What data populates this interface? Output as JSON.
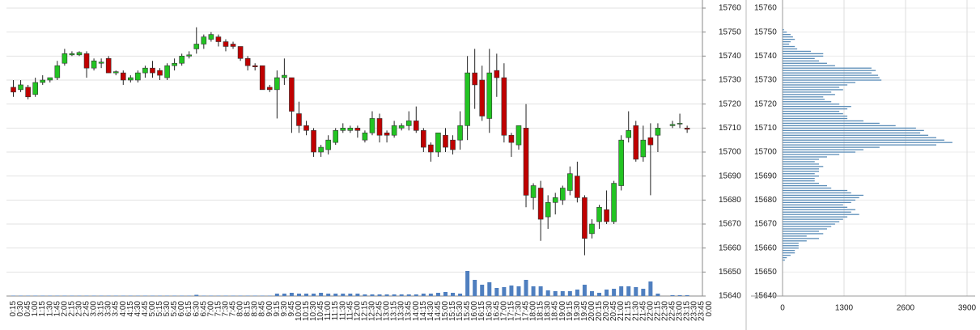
{
  "chart_data": [
    {
      "type": "candlestick",
      "categories": [
        "0:15",
        "0:30",
        "0:45",
        "1:00",
        "1:15",
        "1:30",
        "1:45",
        "2:00",
        "2:15",
        "2:30",
        "2:45",
        "3:00",
        "3:15",
        "3:30",
        "3:45",
        "4:00",
        "4:15",
        "4:30",
        "4:45",
        "5:00",
        "5:15",
        "5:30",
        "5:45",
        "6:00",
        "6:15",
        "6:30",
        "6:45",
        "7:00",
        "7:15",
        "7:30",
        "7:45",
        "8:00",
        "8:15",
        "8:30",
        "8:45",
        "9:00",
        "9:15",
        "9:30",
        "9:45",
        "10:00",
        "10:15",
        "10:30",
        "10:45",
        "11:00",
        "11:15",
        "11:30",
        "11:45",
        "12:00",
        "12:15",
        "12:30",
        "12:45",
        "13:00",
        "13:15",
        "13:30",
        "13:45",
        "14:00",
        "14:15",
        "14:30",
        "14:45",
        "15:00",
        "15:15",
        "15:30",
        "15:45",
        "16:00",
        "16:15",
        "16:30",
        "16:45",
        "17:00",
        "17:15",
        "17:30",
        "17:45",
        "18:00",
        "18:15",
        "18:30",
        "18:45",
        "19:00",
        "19:15",
        "19:30",
        "19:45",
        "20:00",
        "20:15",
        "20:30",
        "20:45",
        "21:00",
        "21:15",
        "21:30",
        "21:45",
        "22:00",
        "22:15",
        "22:30",
        "22:45",
        "23:00",
        "23:15",
        "23:30",
        "23:45",
        "0:00"
      ],
      "open": [
        15727,
        15726,
        15727,
        15724,
        15729,
        15730,
        15731,
        15737,
        15740.5,
        15740.5,
        15741,
        15735,
        15737,
        15739,
        15733,
        15733,
        15730,
        15730,
        15733,
        15735,
        15734,
        15731,
        15736,
        15737,
        15740,
        15743,
        15745,
        15747,
        15748,
        15746,
        15745,
        15744,
        15739,
        15736,
        15736,
        15727,
        15726,
        15731,
        15731,
        15716,
        15711,
        15709,
        15700,
        15701,
        15704,
        15709,
        15709,
        15710,
        15705,
        15708,
        15714,
        15708,
        15707,
        15710,
        15711,
        15713,
        15709,
        15703,
        15700,
        15707,
        15705,
        15705,
        15711,
        15733,
        15730,
        15714,
        15734,
        15731,
        15707,
        15703,
        15710,
        15681,
        15685,
        15673,
        15679,
        15680,
        15684,
        15690,
        15681,
        15666,
        15671,
        15676,
        15671,
        15686,
        15706,
        15711,
        15698,
        15706,
        15707,
        null,
        15711,
        15712,
        15710,
        null,
        null,
        null
      ],
      "high": [
        15730,
        15730,
        15728,
        15731,
        15732,
        15731,
        15738,
        15743,
        15742,
        15742,
        15742,
        15739,
        15739,
        15740,
        15734,
        15734,
        15732,
        15734,
        15736,
        15738,
        15735,
        15737,
        15739,
        15741,
        15742,
        15752,
        15749,
        15750,
        15749,
        15747,
        15746,
        15744,
        15740,
        15737,
        15736,
        15728,
        15734,
        15739,
        15731,
        15721,
        15713,
        15710,
        15703,
        15707,
        15710,
        15712,
        15711,
        15711,
        15709,
        15717,
        15716,
        15709,
        15713,
        15712,
        15717,
        15719,
        15710,
        15704,
        15708,
        15710,
        15707,
        15717,
        15740,
        15743,
        15736,
        15743,
        15741,
        15737,
        15708,
        15711,
        15720,
        15687,
        15688,
        15682,
        15683,
        15686,
        15694,
        15696,
        15682,
        15672,
        15678,
        15684,
        15688,
        15707,
        15717,
        15713,
        15711,
        15712,
        15712,
        null,
        15713,
        15716,
        15711,
        null,
        null,
        null
      ],
      "low": [
        15723,
        15725,
        15722,
        15723,
        15728,
        15729,
        15730,
        15736,
        15740,
        15740,
        15731,
        15734,
        15735,
        15733,
        15732,
        15728,
        15729,
        15729,
        15731,
        15731,
        15730,
        15730,
        15734,
        15736,
        15739,
        15741,
        15743,
        15746,
        15744,
        15742,
        15743,
        15738,
        15734,
        15734,
        15726,
        15725,
        15714,
        15728,
        15708,
        15708,
        15707,
        15698,
        15698,
        15699,
        15703,
        15708,
        15708,
        15706,
        15704,
        15707,
        15704,
        15704,
        15706,
        15709,
        15709,
        15708,
        15700,
        15696,
        15698,
        15700,
        15699,
        15701,
        15705,
        15718,
        15713,
        15708,
        15723,
        15704,
        15698,
        15701,
        15677,
        15676,
        15663,
        15668,
        15674,
        15678,
        15682,
        15679,
        15657,
        15664,
        15668,
        15670,
        15670,
        15684,
        15704,
        15696,
        15696,
        15682,
        15700,
        null,
        15710,
        15710,
        15708,
        null,
        null,
        null
      ],
      "close": [
        15725,
        15728,
        15723,
        15729,
        15730,
        15731,
        15736,
        15741,
        15741,
        15741.5,
        15735,
        15738,
        15737.5,
        15733,
        15733.5,
        15730,
        15731,
        15733,
        15735,
        15733,
        15732,
        15736,
        15737,
        15740,
        15740.5,
        15745,
        15748,
        15749,
        15746,
        15744,
        15744,
        15739,
        15736,
        15735.5,
        15726,
        15726,
        15731,
        15732,
        15717,
        15711,
        15709,
        15700,
        15702,
        15705,
        15709,
        15710,
        15710,
        15709,
        15708,
        15714,
        15707,
        15707,
        15711,
        15711,
        15713,
        15709,
        15702,
        15700,
        15708,
        15702,
        15701,
        15711,
        15733,
        15728,
        15715,
        15733,
        15731,
        15707,
        15704,
        15711,
        15682,
        15686,
        15672,
        15679,
        15681,
        15685,
        15691,
        15681,
        15664,
        15670,
        15677,
        15671,
        15687,
        15705,
        15709,
        15697,
        15705,
        15703,
        15710,
        null,
        15711.5,
        15712,
        15709.5,
        null,
        null,
        null
      ],
      "volume": [
        0.5,
        0.5,
        0.5,
        0.5,
        0.5,
        0.5,
        0.5,
        0.5,
        0.5,
        0.5,
        0.5,
        0.5,
        0.5,
        0.5,
        0.5,
        0.5,
        0.5,
        0.5,
        0.5,
        0.5,
        0.5,
        0.5,
        0.5,
        0.5,
        0.5,
        1.5,
        0.5,
        0.5,
        0.5,
        0.5,
        0.5,
        0.5,
        0.5,
        0.5,
        0.5,
        0.5,
        3,
        3,
        4,
        3,
        3,
        3,
        4,
        3,
        3,
        3,
        3,
        3,
        2,
        2,
        2,
        2,
        2,
        2,
        2,
        2,
        3,
        3,
        4,
        5,
        4,
        3,
        31,
        20,
        14,
        17,
        10,
        11,
        13,
        12,
        20,
        12,
        12,
        7,
        6,
        6,
        6,
        8,
        14,
        6,
        4,
        8,
        9,
        12,
        12,
        11,
        9,
        18,
        3,
        null,
        1,
        1,
        1,
        null,
        null,
        null
      ],
      "up_color": "#22c422",
      "down_color": "#c00000",
      "volume_color": "#4f7fbf",
      "ylim": [
        15640,
        15760
      ],
      "yticks": [
        15640,
        15650,
        15660,
        15670,
        15680,
        15690,
        15700,
        15710,
        15720,
        15730,
        15740,
        15750,
        15760
      ],
      "grid": true
    },
    {
      "type": "bar",
      "orientation": "horizontal",
      "y": [
        15751,
        15750,
        15749,
        15748,
        15747,
        15746,
        15745,
        15744,
        15743,
        15742,
        15741,
        15740,
        15739,
        15738,
        15737,
        15736,
        15735,
        15734,
        15733,
        15732,
        15731,
        15730,
        15729,
        15728,
        15727,
        15726,
        15725,
        15724,
        15723,
        15722,
        15721,
        15720,
        15719,
        15718,
        15717,
        15716,
        15715,
        15714,
        15713,
        15712,
        15711,
        15710,
        15709,
        15708,
        15707,
        15706,
        15705,
        15704,
        15703,
        15702,
        15701,
        15700,
        15699,
        15698,
        15697,
        15696,
        15695,
        15694,
        15693,
        15692,
        15691,
        15690,
        15689,
        15688,
        15687,
        15686,
        15685,
        15684,
        15683,
        15682,
        15681,
        15680,
        15679,
        15678,
        15677,
        15676,
        15675,
        15674,
        15673,
        15672,
        15671,
        15670,
        15669,
        15668,
        15667,
        15666,
        15665,
        15664,
        15663,
        15662,
        15661,
        15660,
        15659,
        15658,
        15657,
        15656,
        15655
      ],
      "values": [
        30,
        90,
        170,
        220,
        260,
        170,
        140,
        260,
        310,
        600,
        860,
        860,
        680,
        770,
        940,
        1110,
        1880,
        1970,
        1880,
        2020,
        2050,
        2090,
        1540,
        1370,
        1200,
        1280,
        1030,
        1110,
        860,
        890,
        1030,
        1200,
        1450,
        1370,
        1200,
        1280,
        1370,
        1370,
        1710,
        2050,
        2390,
        2820,
        2990,
        2910,
        3080,
        3250,
        3420,
        3590,
        3250,
        2050,
        1710,
        1540,
        1200,
        940,
        770,
        680,
        770,
        860,
        770,
        770,
        680,
        770,
        680,
        680,
        770,
        940,
        1030,
        1370,
        1450,
        1710,
        1620,
        1540,
        1450,
        1280,
        1370,
        1540,
        1450,
        1620,
        1370,
        1280,
        1200,
        1110,
        1030,
        940,
        770,
        860,
        510,
        770,
        510,
        340,
        340,
        340,
        260,
        260,
        170,
        90,
        50
      ],
      "color": "#5b8db8",
      "xlim": [
        0,
        3900
      ],
      "xticks": [
        0,
        1300,
        2600,
        3900
      ],
      "ylim": [
        15640,
        15760
      ],
      "yticks": [
        15640,
        15650,
        15660,
        15670,
        15680,
        15690,
        15700,
        15710,
        15720,
        15730,
        15740,
        15750,
        15760
      ],
      "grid": true
    }
  ]
}
